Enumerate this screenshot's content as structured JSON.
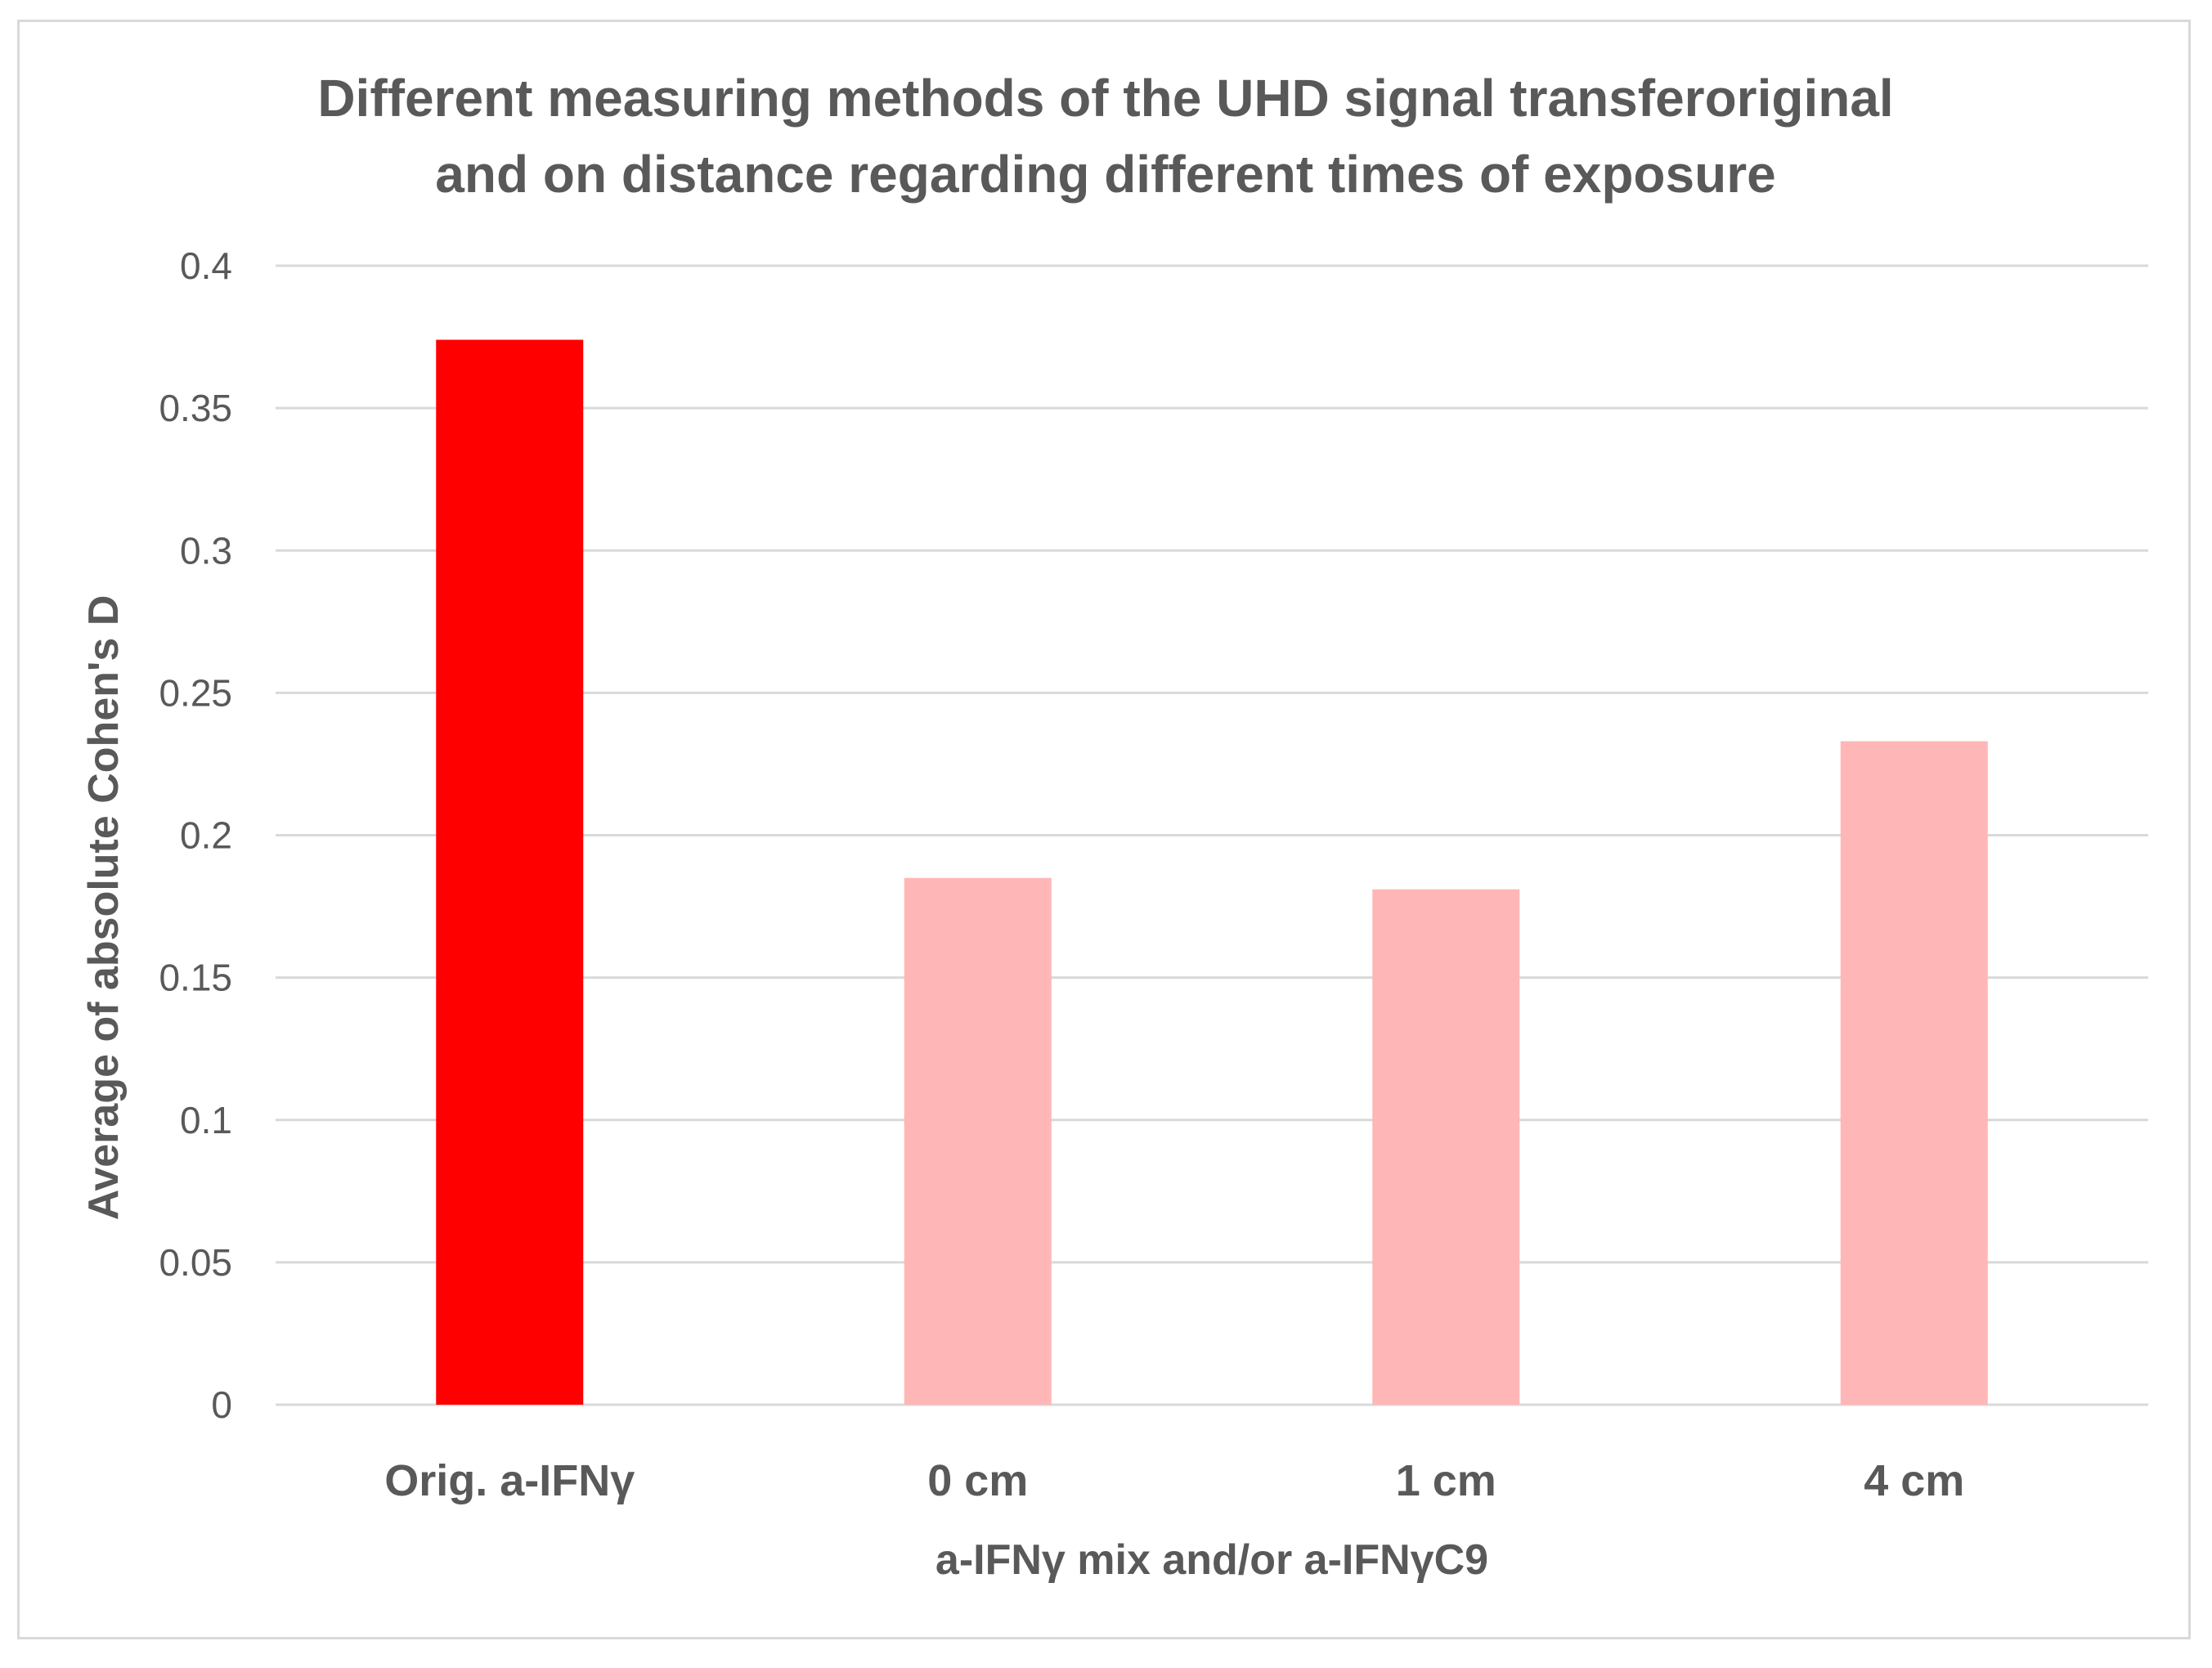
{
  "chart_data": {
    "type": "bar",
    "title_lines": [
      "Different measuring methods of the UHD signal transferoriginal",
      "and  on distance regarding different times of exposure"
    ],
    "xlabel": "a-IFNγ mix and/or a-IFNγC9",
    "ylabel": "Average of absolute Cohen's D",
    "categories": [
      "Orig. a-IFNγ",
      "0 cm",
      "1 cm",
      "4 cm"
    ],
    "values": [
      0.374,
      0.185,
      0.181,
      0.233
    ],
    "bar_colors": [
      "#ff0000",
      "#ffb6b6",
      "#ffb6b6",
      "#ffb6b6"
    ],
    "ylim": [
      0,
      0.4
    ],
    "yticks": [
      "0",
      "0.05",
      "0.1",
      "0.15",
      "0.2",
      "0.25",
      "0.3",
      "0.35",
      "0.4"
    ],
    "grid": true,
    "legend": "none"
  }
}
